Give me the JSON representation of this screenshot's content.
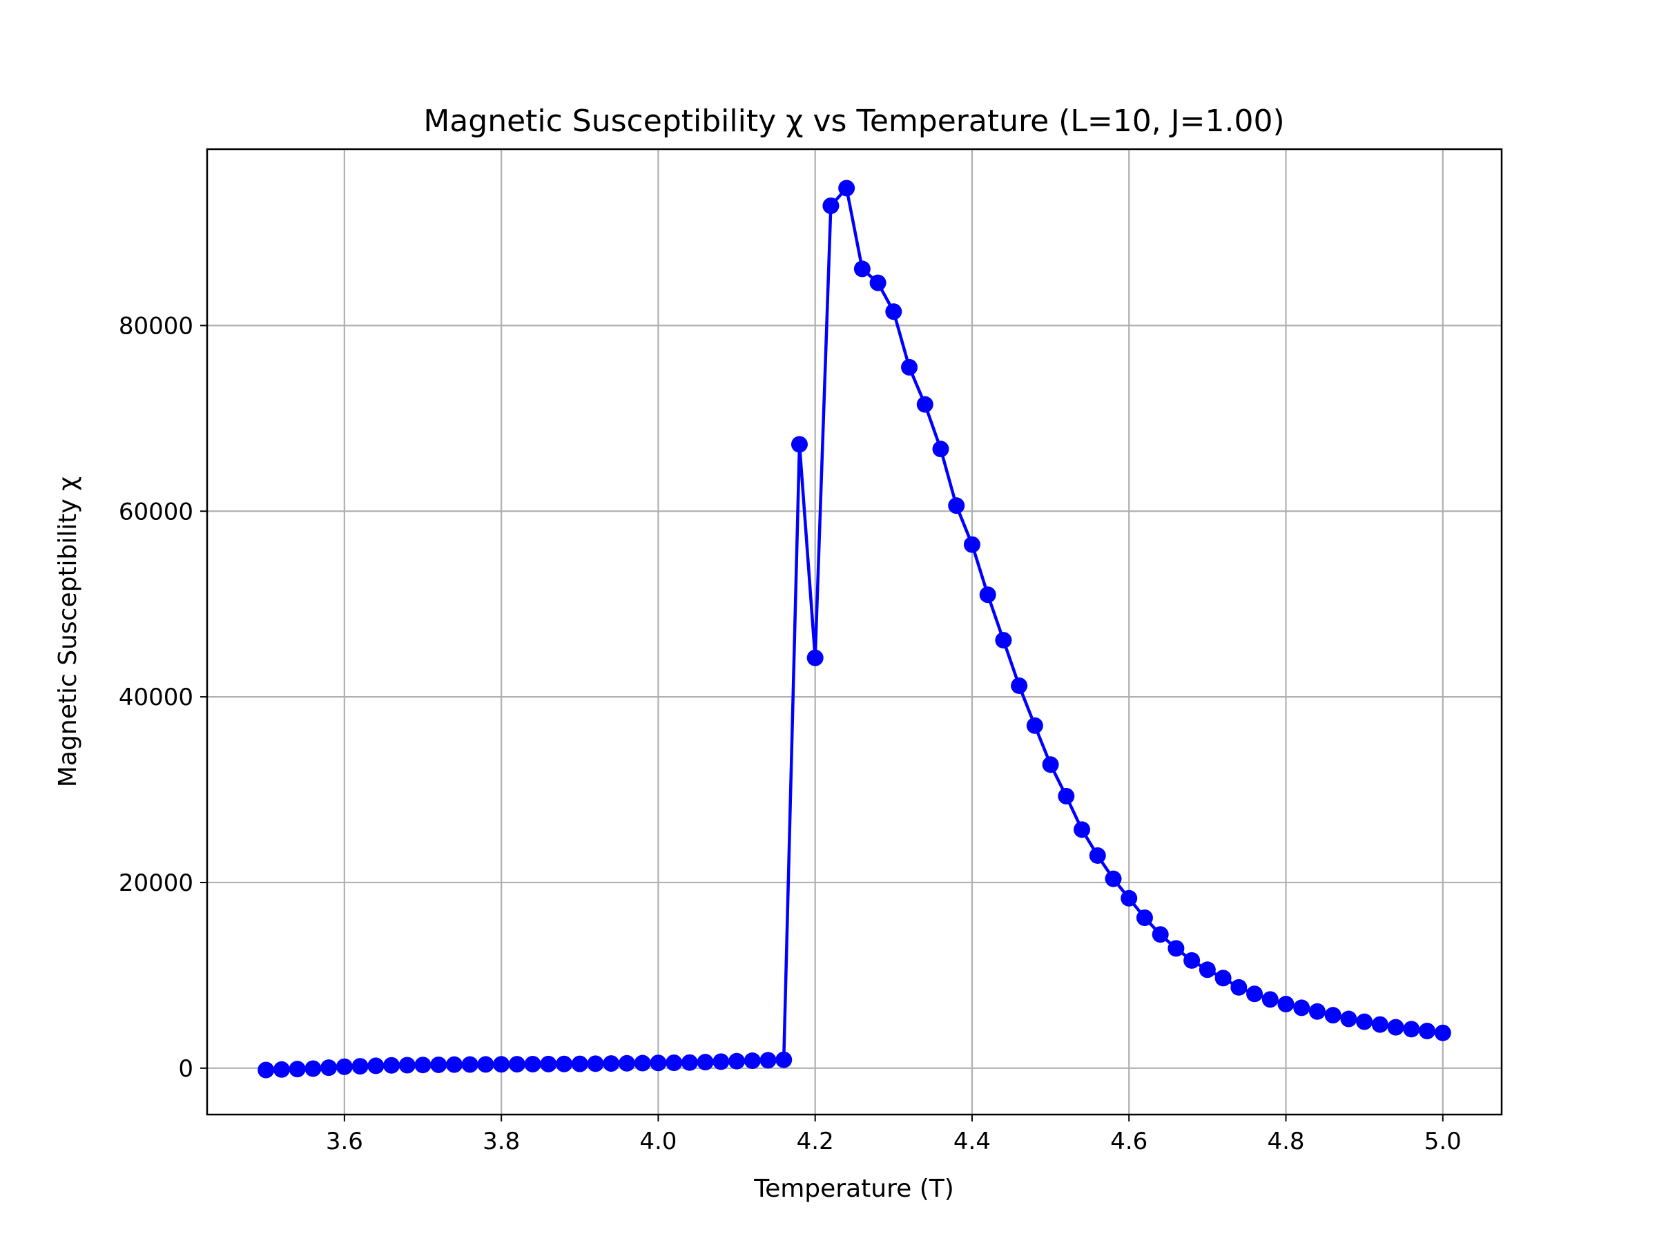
{
  "chart_data": {
    "type": "line",
    "title": "Magnetic Susceptibility χ vs Temperature (L=10, J=1.00)",
    "xlabel": "Temperature (T)",
    "ylabel": "Magnetic Susceptibility χ",
    "xlim": [
      3.425,
      5.075
    ],
    "ylim": [
      -5000,
      99000
    ],
    "xticks": [
      3.6,
      3.8,
      4.0,
      4.2,
      4.4,
      4.6,
      4.8,
      5.0
    ],
    "xtick_labels": [
      "3.6",
      "3.8",
      "4.0",
      "4.2",
      "4.4",
      "4.6",
      "4.8",
      "5.0"
    ],
    "yticks": [
      0,
      20000,
      40000,
      60000,
      80000
    ],
    "ytick_labels": [
      "0",
      "20000",
      "40000",
      "60000",
      "80000"
    ],
    "grid": true,
    "legend": "none",
    "series": [
      {
        "color": "#0000ff",
        "marker": "circle",
        "x": [
          3.5,
          3.52,
          3.54,
          3.56,
          3.58,
          3.6,
          3.62,
          3.64,
          3.66,
          3.68,
          3.7,
          3.72,
          3.74,
          3.76,
          3.78,
          3.8,
          3.82,
          3.84,
          3.86,
          3.88,
          3.9,
          3.92,
          3.94,
          3.96,
          3.98,
          4.0,
          4.02,
          4.04,
          4.06,
          4.08,
          4.1,
          4.12,
          4.14,
          4.16,
          4.18,
          4.2,
          4.22,
          4.24,
          4.26,
          4.28,
          4.3,
          4.32,
          4.34,
          4.36,
          4.38,
          4.4,
          4.42,
          4.44,
          4.46,
          4.48,
          4.5,
          4.52,
          4.54,
          4.56,
          4.58,
          4.6,
          4.62,
          4.64,
          4.66,
          4.68,
          4.7,
          4.72,
          4.74,
          4.76,
          4.78,
          4.8,
          4.82,
          4.84,
          4.86,
          4.88,
          4.9,
          4.92,
          4.94,
          4.96,
          4.98,
          5.0
        ],
        "y": [
          -200,
          -150,
          -100,
          -50,
          50,
          150,
          200,
          250,
          300,
          320,
          340,
          360,
          380,
          390,
          400,
          410,
          420,
          430,
          440,
          450,
          460,
          480,
          500,
          520,
          540,
          560,
          580,
          600,
          650,
          700,
          750,
          800,
          850,
          900,
          67200,
          44200,
          92900,
          94800,
          86100,
          84600,
          81500,
          75500,
          71500,
          66700,
          60600,
          56400,
          51000,
          46100,
          41200,
          36900,
          32700,
          29300,
          25700,
          22900,
          20400,
          18300,
          16200,
          14400,
          12900,
          11600,
          10600,
          9700,
          8700,
          8000,
          7400,
          6900,
          6500,
          6100,
          5700,
          5300,
          5000,
          4700,
          4400,
          4200,
          4000,
          3800
        ]
      }
    ]
  }
}
